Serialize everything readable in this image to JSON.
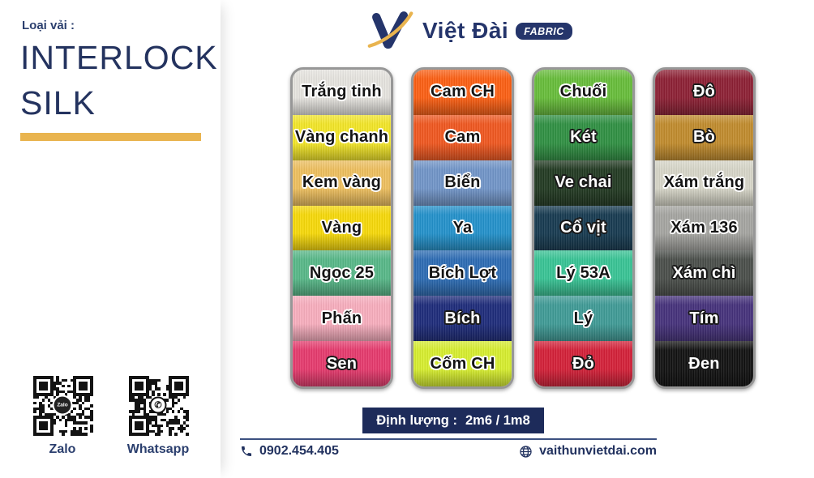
{
  "sidebar": {
    "fabric_type_label": "Loại vải :",
    "title_line1": "INTERLOCK",
    "title_line2": "SILK",
    "accent_bar_color": "#e9b44f",
    "qr_codes": [
      {
        "label": "Zalo",
        "icon": "zalo-qr-code"
      },
      {
        "label": "Whatsapp",
        "icon": "whatsapp-qr-code"
      }
    ]
  },
  "header": {
    "logo_icon": "v-swoosh-logo",
    "brand_name": "Việt Đài",
    "brand_badge": "FABRIC",
    "brand_color": "#25356b",
    "logo_gold": "#e9b44f"
  },
  "swatch_columns": [
    {
      "swatches": [
        {
          "name": "Trắng tinh",
          "color": "#e6e4df",
          "text": "dark"
        },
        {
          "name": "Vàng chanh",
          "color": "#f3e627",
          "text": "dark"
        },
        {
          "name": "Kem vàng",
          "color": "#eebf5e",
          "text": "dark"
        },
        {
          "name": "Vàng",
          "color": "#f7d909",
          "text": "dark"
        },
        {
          "name": "Ngọc 25",
          "color": "#57b888",
          "text": "dark"
        },
        {
          "name": "Phấn",
          "color": "#f8aebe",
          "text": "dark"
        },
        {
          "name": "Sen",
          "color": "#e63a6d",
          "text": "light"
        }
      ]
    },
    {
      "swatches": [
        {
          "name": "Cam CH",
          "color": "#fc5f13",
          "text": "dark"
        },
        {
          "name": "Cam",
          "color": "#f0571f",
          "text": "dark"
        },
        {
          "name": "Biển",
          "color": "#7195c8",
          "text": "dark"
        },
        {
          "name": "Ya",
          "color": "#2391cb",
          "text": "dark"
        },
        {
          "name": "Bích Lợt",
          "color": "#2c6cb4",
          "text": "dark"
        },
        {
          "name": "Bích",
          "color": "#1d2b7a",
          "text": "light"
        },
        {
          "name": "Cốm CH",
          "color": "#d7ee2e",
          "text": "dark"
        }
      ]
    },
    {
      "swatches": [
        {
          "name": "Chuối",
          "color": "#67bd3a",
          "text": "dark"
        },
        {
          "name": "Két",
          "color": "#2f9042",
          "text": "light"
        },
        {
          "name": "Ve chai",
          "color": "#223a22",
          "text": "light"
        },
        {
          "name": "Cổ vịt",
          "color": "#163a50",
          "text": "light"
        },
        {
          "name": "Lý 53A",
          "color": "#38c495",
          "text": "dark"
        },
        {
          "name": "Lý",
          "color": "#3f9b96",
          "text": "dark"
        },
        {
          "name": "Đỏ",
          "color": "#d42038",
          "text": "light"
        }
      ]
    },
    {
      "swatches": [
        {
          "name": "Đô",
          "color": "#8d2034",
          "text": "light"
        },
        {
          "name": "Bò",
          "color": "#c18b2c",
          "text": "light"
        },
        {
          "name": "Xám trắng",
          "color": "#d7d6c8",
          "text": "dark"
        },
        {
          "name": "Xám 136",
          "color": "#a5a5a1",
          "text": "dark"
        },
        {
          "name": "Xám chì",
          "color": "#4a4e4a",
          "text": "light"
        },
        {
          "name": "Tím",
          "color": "#45317b",
          "text": "light"
        },
        {
          "name": "Đen",
          "color": "#111111",
          "text": "light"
        }
      ]
    }
  ],
  "spec_badge": {
    "label": "Định lượng :",
    "value": "2m6 / 1m8",
    "background": "#1d2b5a"
  },
  "contact": {
    "phone_icon": "phone-icon",
    "phone": "0902.454.405",
    "website_icon": "globe-icon",
    "website": "vaithunvietdai.com"
  }
}
